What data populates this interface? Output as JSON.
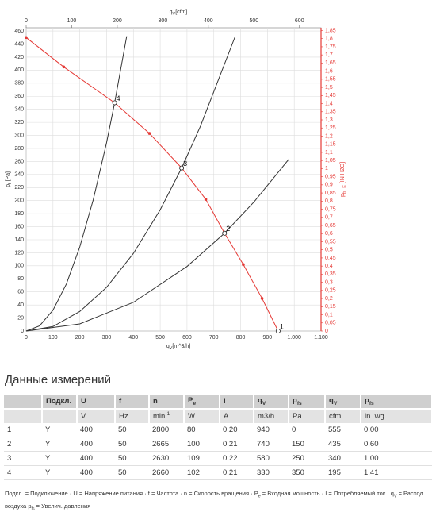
{
  "chart_data": {
    "type": "line",
    "x_label": {
      "t": "q",
      "sub": "V",
      "rest": "[m^3/h]"
    },
    "x2_label": {
      "t": "q",
      "sub": "V",
      "rest": "[cfm]"
    },
    "y_label": {
      "t": "p",
      "sub": "f",
      "rest": " [Pa]"
    },
    "y2_label": {
      "t": "p",
      "sub": "fs_E",
      "rest": " [IN H2O]"
    },
    "xlim": [
      0,
      1100
    ],
    "xticks": [
      0,
      100,
      200,
      300,
      400,
      500,
      600,
      700,
      800,
      900,
      {
        "value": 1000,
        "label": "1.000"
      },
      {
        "value": 1100,
        "label": "1.100"
      }
    ],
    "x2lim": [
      0,
      647.4
    ],
    "x2ticks": [
      0,
      100,
      200,
      300,
      400,
      500,
      600
    ],
    "ylim": [
      0,
      465
    ],
    "yticks": [
      0,
      20,
      40,
      60,
      80,
      100,
      120,
      140,
      160,
      180,
      200,
      220,
      240,
      260,
      280,
      300,
      320,
      340,
      360,
      380,
      400,
      420,
      440,
      460
    ],
    "y2lim": [
      0,
      1.867
    ],
    "y2ticks": [
      0,
      {
        "value": 0.05,
        "label": "0,05"
      },
      {
        "value": 0.1,
        "label": "0,1"
      },
      {
        "value": 0.15,
        "label": "0,15"
      },
      {
        "value": 0.2,
        "label": "0,2"
      },
      {
        "value": 0.25,
        "label": "0,25"
      },
      {
        "value": 0.3,
        "label": "0,3"
      },
      {
        "value": 0.35,
        "label": "0,35"
      },
      {
        "value": 0.4,
        "label": "0,4"
      },
      {
        "value": 0.45,
        "label": "0,45"
      },
      {
        "value": 0.5,
        "label": "0,5"
      },
      {
        "value": 0.55,
        "label": "0,55"
      },
      {
        "value": 0.6,
        "label": "0,6"
      },
      {
        "value": 0.65,
        "label": "0,65"
      },
      {
        "value": 0.7,
        "label": "0,7"
      },
      {
        "value": 0.75,
        "label": "0,75"
      },
      {
        "value": 0.8,
        "label": "0,8"
      },
      {
        "value": 0.85,
        "label": "0,85"
      },
      {
        "value": 0.9,
        "label": "0,9"
      },
      {
        "value": 0.95,
        "label": "0,95"
      },
      1,
      {
        "value": 1.05,
        "label": "1,05"
      },
      {
        "value": 1.1,
        "label": "1,1"
      },
      {
        "value": 1.15,
        "label": "1,15"
      },
      {
        "value": 1.2,
        "label": "1,2"
      },
      {
        "value": 1.25,
        "label": "1,25"
      },
      {
        "value": 1.3,
        "label": "1,3"
      },
      {
        "value": 1.35,
        "label": "1,35"
      },
      {
        "value": 1.4,
        "label": "1,4"
      },
      {
        "value": 1.45,
        "label": "1,45"
      },
      {
        "value": 1.5,
        "label": "1,5"
      },
      {
        "value": 1.55,
        "label": "1,55"
      },
      {
        "value": 1.6,
        "label": "1,6"
      },
      {
        "value": 1.65,
        "label": "1,65"
      },
      {
        "value": 1.7,
        "label": "1,7"
      },
      {
        "value": 1.75,
        "label": "1,75"
      },
      {
        "value": 1.8,
        "label": "1,8"
      },
      {
        "value": 1.85,
        "label": "1,85"
      }
    ],
    "grid": true,
    "axis_color": "#e53935",
    "series": [
      {
        "color": "#e53935",
        "markers": true,
        "x": [
          0,
          140,
          330,
          460,
          580,
          670,
          740,
          810,
          880,
          940
        ],
        "values": [
          450,
          405,
          350,
          303,
          250,
          202,
          150,
          102,
          50,
          0
        ]
      },
      {
        "color": "#333333",
        "markers": false,
        "x": [
          0,
          50,
          100,
          150,
          200,
          250,
          300,
          330,
          375
        ],
        "values": [
          0,
          8,
          32,
          72,
          129,
          201,
          289,
          350,
          452
        ]
      },
      {
        "color": "#333333",
        "markers": false,
        "x": [
          0,
          100,
          200,
          300,
          400,
          500,
          580,
          650,
          779
        ],
        "values": [
          0,
          7,
          30,
          67,
          119,
          186,
          250,
          314,
          451
        ]
      },
      {
        "color": "#333333",
        "markers": false,
        "x": [
          0,
          200,
          400,
          600,
          740,
          850,
          979
        ],
        "values": [
          0,
          11,
          44,
          99,
          150,
          198,
          263
        ]
      }
    ],
    "operating_points": [
      {
        "label": "1",
        "x": 940,
        "y": 0
      },
      {
        "label": "2",
        "x": 740,
        "y": 150
      },
      {
        "label": "3",
        "x": 580,
        "y": 250
      },
      {
        "label": "4",
        "x": 330,
        "y": 350
      }
    ]
  },
  "table": {
    "title": "Данные измерений",
    "header": [
      null,
      "Подкл.",
      "U",
      "f",
      "n",
      {
        "t": "P",
        "sub": "e"
      },
      "I",
      {
        "t": "q",
        "sub": "V"
      },
      {
        "t": "p",
        "sub": "fs"
      },
      {
        "t": "q",
        "sub": "V"
      },
      {
        "t": "p",
        "sub": "fs"
      }
    ],
    "units": [
      null,
      null,
      "V",
      "Hz",
      {
        "t": "min",
        "sup": "-1"
      },
      "W",
      "A",
      "m3/h",
      "Pa",
      "cfm",
      "in. wg"
    ],
    "rows": [
      [
        "1",
        "Y",
        "400",
        "50",
        "2800",
        "80",
        "0,20",
        "940",
        "0",
        "555",
        "0,00"
      ],
      [
        "2",
        "Y",
        "400",
        "50",
        "2665",
        "100",
        "0,21",
        "740",
        "150",
        "435",
        "0,60"
      ],
      [
        "3",
        "Y",
        "400",
        "50",
        "2630",
        "109",
        "0,22",
        "580",
        "250",
        "340",
        "1,00"
      ],
      [
        "4",
        "Y",
        "400",
        "50",
        "2660",
        "102",
        "0,21",
        "330",
        "350",
        "195",
        "1,41"
      ]
    ],
    "footnote": [
      {
        "t": "Подкл.",
        "rest": " = Подключение · "
      },
      {
        "t": "U",
        "rest": " = Напряжение питания · "
      },
      {
        "t": "f",
        "rest": " = Частота · "
      },
      {
        "t": "n",
        "rest": " = Скорость вращения · "
      },
      {
        "t": "P",
        "sub": "e",
        "rest": " = Входная мощность · "
      },
      {
        "t": "I",
        "rest": " = Потребляемый ток · "
      },
      {
        "t": "q",
        "sub": "V",
        "rest": " = Расход воздуха "
      },
      {
        "t": "p",
        "sub": "fs",
        "rest": " = Увелич. давления"
      }
    ]
  }
}
